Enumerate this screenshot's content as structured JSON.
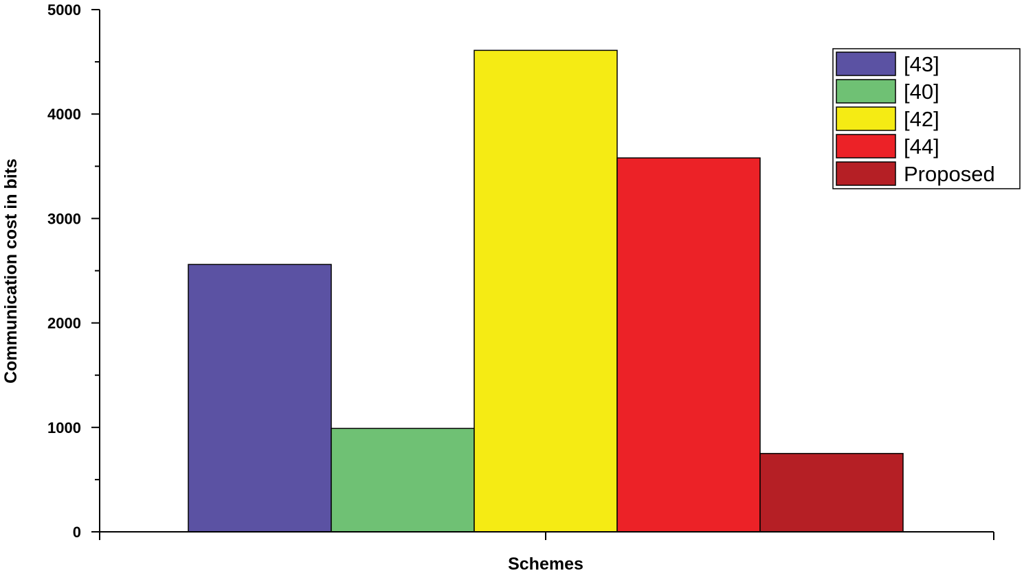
{
  "chart_data": {
    "type": "bar",
    "title": "",
    "xlabel": "Schemes",
    "ylabel": "Communication cost in bits",
    "ylim": [
      0,
      5000
    ],
    "yticks": [
      0,
      1000,
      2000,
      3000,
      4000,
      5000
    ],
    "grid": false,
    "legend_position": "top-right",
    "series": [
      {
        "name": "[43]",
        "value": 2560,
        "color": "#5b52a3"
      },
      {
        "name": "[40]",
        "value": 990,
        "color": "#6fc174"
      },
      {
        "name": "[42]",
        "value": 4610,
        "color": "#f5eb14"
      },
      {
        "name": "[44]",
        "value": 3580,
        "color": "#ec2227"
      },
      {
        "name": "Proposed",
        "value": 750,
        "color": "#b51f25"
      }
    ]
  }
}
